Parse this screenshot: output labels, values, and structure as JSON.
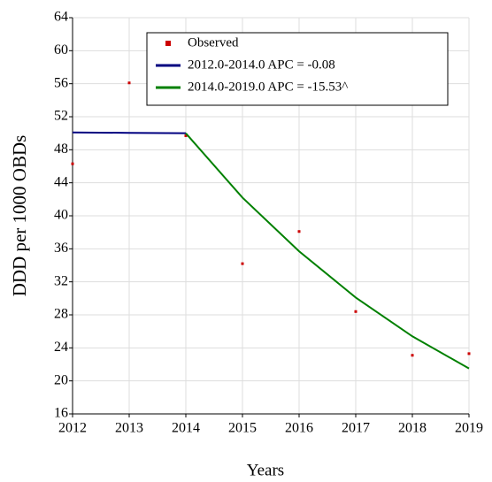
{
  "chart_data": {
    "type": "scatter",
    "x_label": "Years",
    "y_label": "DDD per 1000 OBDs",
    "x": [
      2012,
      2013,
      2014,
      2015,
      2016,
      2017,
      2018,
      2019
    ],
    "series": [
      {
        "name": "Observed",
        "color": "#cc0000",
        "mode": "markers",
        "values": [
          46.3,
          56.1,
          49.7,
          34.2,
          38.1,
          28.4,
          23.1,
          23.3
        ]
      },
      {
        "name": "2012.0-2014.0 APC = -0.08",
        "color": "#000080",
        "mode": "lines",
        "values": [
          50.1,
          50.05,
          50.0,
          null,
          null,
          null,
          null,
          null
        ]
      },
      {
        "name": "2014.0-2019.0 APC = -15.53^",
        "color": "#008000",
        "mode": "lines",
        "values": [
          null,
          null,
          50.0,
          42.2,
          35.7,
          30.1,
          25.4,
          21.5
        ]
      }
    ],
    "xlim": [
      2012,
      2019
    ],
    "xticks": [
      2012,
      2013,
      2014,
      2015,
      2016,
      2017,
      2018,
      2019
    ],
    "ylim": [
      16,
      64
    ],
    "yticks": [
      16,
      20,
      24,
      28,
      32,
      36,
      40,
      44,
      48,
      52,
      56,
      60,
      64
    ],
    "grid": true
  }
}
